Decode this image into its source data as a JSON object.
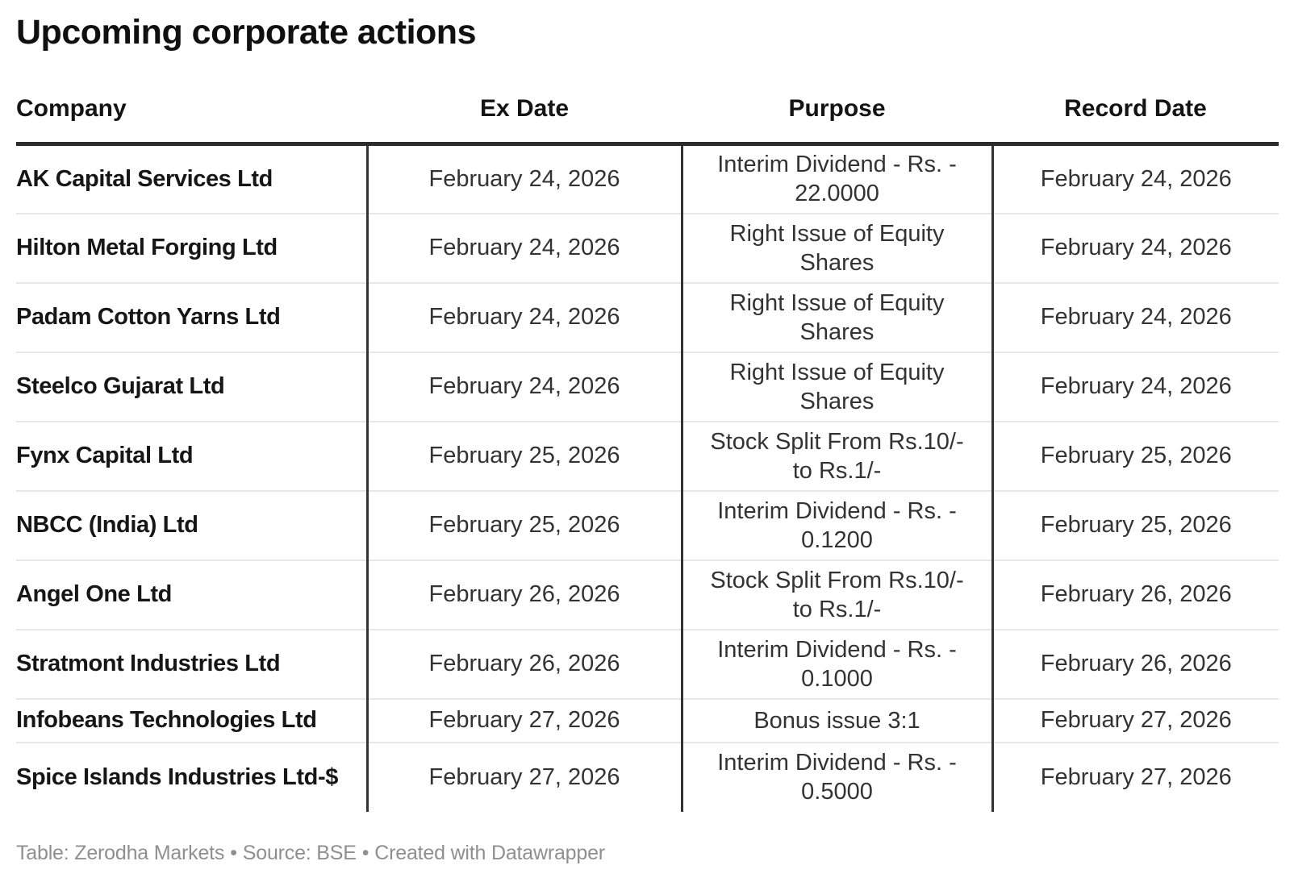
{
  "title": "Upcoming corporate actions",
  "columns": [
    "Company",
    "Ex Date",
    "Purpose",
    "Record Date"
  ],
  "rows": [
    {
      "company": "AK Capital Services Ltd",
      "ex_date": "February 24, 2026",
      "purpose": "Interim Dividend - Rs. -\n22.0000",
      "record_date": "February 24, 2026"
    },
    {
      "company": "Hilton Metal Forging Ltd",
      "ex_date": "February 24, 2026",
      "purpose": "Right Issue of Equity\nShares",
      "record_date": "February 24, 2026"
    },
    {
      "company": "Padam Cotton Yarns Ltd",
      "ex_date": "February 24, 2026",
      "purpose": "Right Issue of Equity\nShares",
      "record_date": "February 24, 2026"
    },
    {
      "company": "Steelco Gujarat Ltd",
      "ex_date": "February 24, 2026",
      "purpose": "Right Issue of Equity\nShares",
      "record_date": "February 24, 2026"
    },
    {
      "company": "Fynx Capital Ltd",
      "ex_date": "February 25, 2026",
      "purpose": "Stock Split From Rs.10/-\nto Rs.1/-",
      "record_date": "February 25, 2026"
    },
    {
      "company": "NBCC (India) Ltd",
      "ex_date": "February 25, 2026",
      "purpose": "Interim Dividend - Rs. -\n0.1200",
      "record_date": "February 25, 2026"
    },
    {
      "company": "Angel One Ltd",
      "ex_date": "February 26, 2026",
      "purpose": "Stock Split From Rs.10/-\nto Rs.1/-",
      "record_date": "February 26, 2026"
    },
    {
      "company": "Stratmont Industries Ltd",
      "ex_date": "February 26, 2026",
      "purpose": "Interim Dividend - Rs. -\n0.1000",
      "record_date": "February 26, 2026"
    },
    {
      "company": "Infobeans Technologies Ltd",
      "ex_date": "February 27, 2026",
      "purpose": "Bonus issue 3:1",
      "record_date": "February 27, 2026"
    },
    {
      "company": "Spice Islands Industries Ltd-$",
      "ex_date": "February 27, 2026",
      "purpose": "Interim Dividend - Rs. -\n0.5000",
      "record_date": "February 27, 2026"
    }
  ],
  "footer": {
    "table_credit": "Table: Zerodha Markets",
    "source": "Source: BSE",
    "created_with": "Created with Datawrapper",
    "separator": "•"
  },
  "colors": {
    "title_text": "#101010",
    "body_text": "#333333",
    "muted_text": "#8f8f8f",
    "header_rule": "#2c2c2c",
    "column_rule": "#333333",
    "row_rule": "#e7e7e7",
    "background": "#ffffff"
  },
  "chart_data": {
    "type": "table",
    "title": "Upcoming corporate actions",
    "columns": [
      "Company",
      "Ex Date",
      "Purpose",
      "Record Date"
    ],
    "rows": [
      [
        "AK Capital Services Ltd",
        "February 24, 2026",
        "Interim Dividend - Rs. - 22.0000",
        "February 24, 2026"
      ],
      [
        "Hilton Metal Forging Ltd",
        "February 24, 2026",
        "Right Issue of Equity Shares",
        "February 24, 2026"
      ],
      [
        "Padam Cotton Yarns Ltd",
        "February 24, 2026",
        "Right Issue of Equity Shares",
        "February 24, 2026"
      ],
      [
        "Steelco Gujarat Ltd",
        "February 24, 2026",
        "Right Issue of Equity Shares",
        "February 24, 2026"
      ],
      [
        "Fynx Capital Ltd",
        "February 25, 2026",
        "Stock Split From Rs.10/- to Rs.1/-",
        "February 25, 2026"
      ],
      [
        "NBCC (India) Ltd",
        "February 25, 2026",
        "Interim Dividend - Rs. - 0.1200",
        "February 25, 2026"
      ],
      [
        "Angel One Ltd",
        "February 26, 2026",
        "Stock Split From Rs.10/- to Rs.1/-",
        "February 26, 2026"
      ],
      [
        "Stratmont Industries Ltd",
        "February 26, 2026",
        "Interim Dividend - Rs. - 0.1000",
        "February 26, 2026"
      ],
      [
        "Infobeans Technologies Ltd",
        "February 27, 2026",
        "Bonus issue 3:1",
        "February 27, 2026"
      ],
      [
        "Spice Islands Industries Ltd-$",
        "February 27, 2026",
        "Interim Dividend - Rs. - 0.5000",
        "February 27, 2026"
      ]
    ]
  }
}
